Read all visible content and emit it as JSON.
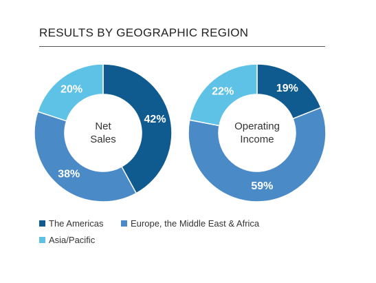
{
  "title": "RESULTS BY GEOGRAPHIC REGION",
  "colors": {
    "americas": "#0f5a8e",
    "emea": "#4a8ac6",
    "asia_pacific": "#5ec2e6"
  },
  "chart_data": [
    {
      "type": "pie",
      "variant": "donut",
      "center_label": [
        "Net",
        "Sales"
      ],
      "categories": [
        "The Americas",
        "Europe, the Middle East & Africa",
        "Asia/Pacific"
      ],
      "values": [
        42,
        38,
        20
      ],
      "labels": [
        "42%",
        "38%",
        "20%"
      ],
      "colors": [
        "#0f5a8e",
        "#4a8ac6",
        "#5ec2e6"
      ],
      "legend_position": "bottom-left"
    },
    {
      "type": "pie",
      "variant": "donut",
      "center_label": [
        "Operating",
        "Income"
      ],
      "categories": [
        "The Americas",
        "Europe, the Middle East & Africa",
        "Asia/Pacific"
      ],
      "values": [
        19,
        59,
        22
      ],
      "labels": [
        "19%",
        "59%",
        "22%"
      ],
      "colors": [
        "#0f5a8e",
        "#4a8ac6",
        "#5ec2e6"
      ],
      "legend_position": "bottom-left"
    }
  ],
  "legend": [
    {
      "label": "The Americas",
      "color": "#0f5a8e"
    },
    {
      "label": "Europe, the Middle East & Africa",
      "color": "#4a8ac6"
    },
    {
      "label": "Asia/Pacific",
      "color": "#5ec2e6"
    }
  ]
}
